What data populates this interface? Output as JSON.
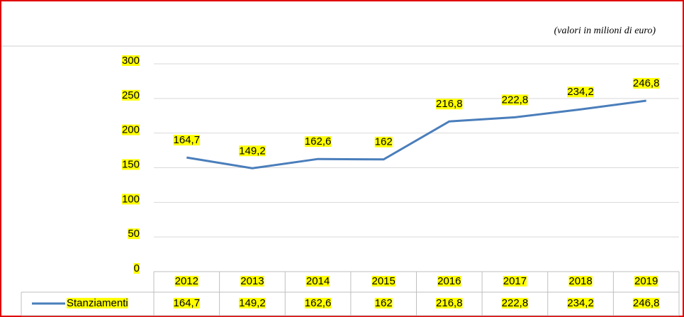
{
  "chart_data": {
    "type": "line",
    "subtitle": "(valori in milioni di euro)",
    "categories": [
      "2012",
      "2013",
      "2014",
      "2015",
      "2016",
      "2017",
      "2018",
      "2019"
    ],
    "series": [
      {
        "name": "Stanziamenti",
        "color": "#4a7ebb",
        "values": [
          164.7,
          149.2,
          162.6,
          162,
          216.8,
          222.8,
          234.2,
          246.8
        ],
        "value_labels": [
          "164,7",
          "149,2",
          "162,6",
          "162",
          "216,8",
          "222,8",
          "234,2",
          "246,8"
        ]
      }
    ],
    "ylim": [
      0,
      300
    ],
    "yticks": [
      0,
      50,
      100,
      150,
      200,
      250,
      300
    ],
    "grid": true,
    "data_table": true,
    "highlight": "#ffff00"
  }
}
